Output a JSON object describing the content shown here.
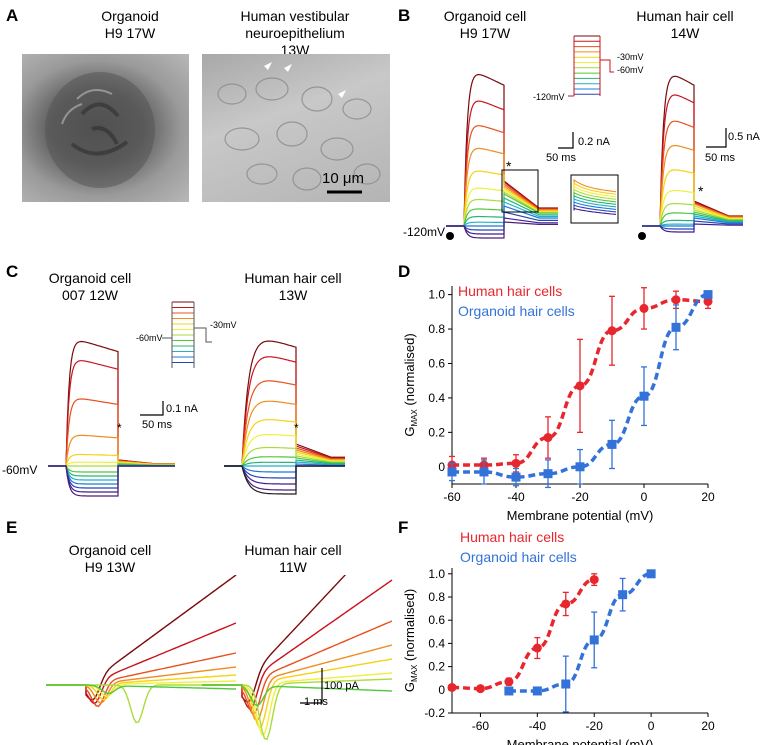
{
  "panel_labels": {
    "a": "A",
    "b": "B",
    "c": "C",
    "d": "D",
    "e": "E",
    "f": "F"
  },
  "panelA": {
    "left_title": [
      "Organoid",
      "H9 17W"
    ],
    "right_title": [
      "Human vestibular",
      "neuroepithelium",
      "13W"
    ],
    "scale_label": "10 μm"
  },
  "panelB": {
    "left_title": [
      "Organoid cell",
      "H9 17W"
    ],
    "right_title": [
      "Human hair cell",
      "14W"
    ],
    "holding_label": "-120mV",
    "protocol_labels": [
      "-30mV",
      "-60mV",
      "-120mV"
    ],
    "scale_left": [
      "0.2 nA",
      "50 ms"
    ],
    "scale_right": [
      "0.5 nA",
      "50 ms"
    ],
    "asterisk": "*"
  },
  "panelC": {
    "left_title": [
      "Organoid cell",
      "007 12W"
    ],
    "right_title": [
      "Human hair cell",
      "13W"
    ],
    "holding_label": "-60mV",
    "protocol_labels": [
      "-60mV",
      "-30mV"
    ],
    "scale": [
      "0.1 nA",
      "50 ms"
    ],
    "asterisk": "*"
  },
  "panelE": {
    "left_title": [
      "Organoid cell",
      "H9 13W"
    ],
    "right_title": [
      "Human hair cell",
      "11W"
    ],
    "scale": [
      "100 pA",
      "1 ms"
    ]
  },
  "trace_colors": [
    "#7a0a0a",
    "#c8141e",
    "#e8501e",
    "#f08c1e",
    "#f5d214",
    "#f0f03c",
    "#aadc3c",
    "#50c83c",
    "#28b478",
    "#1eb4c8",
    "#1e78dc",
    "#2846b4",
    "#3c1e96",
    "#501e78",
    "#1e1e1e"
  ],
  "colors": {
    "human": "#e8262d",
    "organoid": "#3372d9"
  },
  "chart_data": [
    {
      "type": "line",
      "panel": "D",
      "xlabel": "Membrane potential (mV)",
      "ylabel": "G",
      "ylabel_sub": "MAX",
      "ylabel_suffix": " (normalised)",
      "xlim": [
        -60,
        20
      ],
      "ylim": [
        -0.1,
        1.05
      ],
      "xticks": [
        -60,
        -40,
        -20,
        0,
        20
      ],
      "yticks": [
        0,
        0.2,
        0.4,
        0.6,
        0.8,
        1.0
      ],
      "ytick_labels": [
        "0",
        "0.2",
        "0.4",
        "0.6",
        "0.8",
        "1.0"
      ],
      "series": [
        {
          "name": "Human hair cells",
          "color": "#e8262d",
          "marker": "circle",
          "x": [
            -60,
            -50,
            -40,
            -30,
            -20,
            -10,
            0,
            10,
            20
          ],
          "y": [
            0.01,
            0.01,
            0.02,
            0.17,
            0.47,
            0.79,
            0.92,
            0.97,
            0.96
          ],
          "err": [
            0.05,
            0.04,
            0.05,
            0.12,
            0.27,
            0.2,
            0.12,
            0.05,
            0.04
          ]
        },
        {
          "name": "Organoid hair cells",
          "color": "#3372d9",
          "marker": "square",
          "x": [
            -60,
            -50,
            -40,
            -30,
            -20,
            -10,
            0,
            10,
            20
          ],
          "y": [
            -0.03,
            -0.03,
            -0.06,
            -0.04,
            0.0,
            0.13,
            0.41,
            0.81,
            1.0
          ],
          "err": [
            0.05,
            0.07,
            0.05,
            0.08,
            0.1,
            0.14,
            0.17,
            0.13,
            0.02
          ]
        }
      ]
    },
    {
      "type": "line",
      "panel": "F",
      "xlabel": "Membrane potential (mV)",
      "ylabel": "G",
      "ylabel_sub": "MAX",
      "ylabel_suffix": " (normalised)",
      "xlim": [
        -70,
        20
      ],
      "ylim": [
        -0.2,
        1.05
      ],
      "xticks": [
        -60,
        -40,
        -20,
        0,
        20
      ],
      "yticks": [
        -0.2,
        0,
        0.2,
        0.4,
        0.6,
        0.8,
        1.0
      ],
      "ytick_labels": [
        "-0.2",
        "0",
        "0.2",
        "0.4",
        "0.6",
        "0.8",
        "1.0"
      ],
      "series": [
        {
          "name": "Human hair cells",
          "color": "#e8262d",
          "marker": "circle",
          "x": [
            -70,
            -60,
            -50,
            -40,
            -30,
            -20
          ],
          "y": [
            0.02,
            0.01,
            0.07,
            0.36,
            0.74,
            0.95
          ],
          "err": [
            0.02,
            0.02,
            0.03,
            0.09,
            0.1,
            0.05
          ]
        },
        {
          "name": "Organoid hair cells",
          "color": "#3372d9",
          "marker": "square",
          "x": [
            -50,
            -40,
            -30,
            -20,
            -10,
            0
          ],
          "y": [
            -0.01,
            -0.01,
            0.05,
            0.43,
            0.82,
            1.0
          ],
          "err": [
            0.02,
            0.02,
            0.24,
            0.24,
            0.14,
            0.01
          ]
        }
      ]
    }
  ]
}
